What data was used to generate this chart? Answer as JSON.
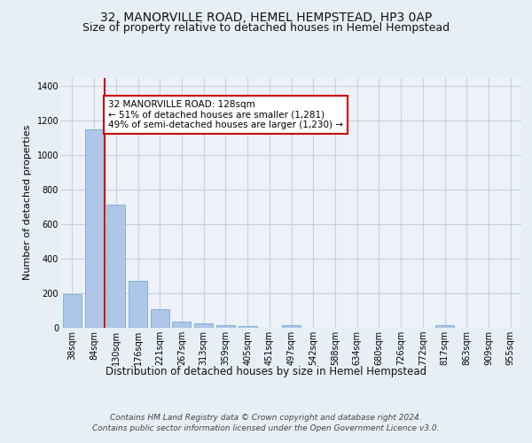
{
  "title": "32, MANORVILLE ROAD, HEMEL HEMPSTEAD, HP3 0AP",
  "subtitle": "Size of property relative to detached houses in Hemel Hempstead",
  "xlabel": "Distribution of detached houses by size in Hemel Hempstead",
  "ylabel": "Number of detached properties",
  "categories": [
    "38sqm",
    "84sqm",
    "130sqm",
    "176sqm",
    "221sqm",
    "267sqm",
    "313sqm",
    "359sqm",
    "405sqm",
    "451sqm",
    "497sqm",
    "542sqm",
    "588sqm",
    "634sqm",
    "680sqm",
    "726sqm",
    "772sqm",
    "817sqm",
    "863sqm",
    "909sqm",
    "955sqm"
  ],
  "values": [
    197,
    1148,
    714,
    270,
    107,
    35,
    28,
    14,
    12,
    0,
    13,
    0,
    0,
    0,
    0,
    0,
    0,
    14,
    0,
    0,
    0
  ],
  "bar_color": "#aec6e8",
  "bar_edge_color": "#7aaad0",
  "vline_color": "#cc0000",
  "vline_x_index": 1.5,
  "annotation_text": "32 MANORVILLE ROAD: 128sqm\n← 51% of detached houses are smaller (1,281)\n49% of semi-detached houses are larger (1,230) →",
  "annotation_box_facecolor": "#ffffff",
  "annotation_box_edgecolor": "#cc0000",
  "ylim": [
    0,
    1450
  ],
  "yticks": [
    0,
    200,
    400,
    600,
    800,
    1000,
    1200,
    1400
  ],
  "footer_line1": "Contains HM Land Registry data © Crown copyright and database right 2024.",
  "footer_line2": "Contains public sector information licensed under the Open Government Licence v3.0.",
  "bg_color": "#e8eef5",
  "plot_bg_color": "#edf1f8",
  "grid_color": "#c8d0e0",
  "title_fontsize": 10,
  "subtitle_fontsize": 9,
  "ylabel_fontsize": 8,
  "xlabel_fontsize": 8.5,
  "tick_fontsize": 7,
  "footer_fontsize": 6.5,
  "annotation_fontsize": 7.5
}
